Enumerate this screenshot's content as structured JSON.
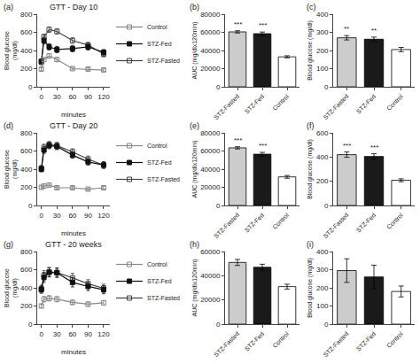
{
  "chart_data": [
    {
      "type": "line",
      "title": "GTT - Day 10",
      "annotations": [
        "(a)"
      ],
      "x": [
        0,
        5,
        15,
        30,
        60,
        90,
        120
      ],
      "xlabel": "minutes",
      "ylabel": "Blood glucose\n(mg/dl)",
      "xlim": [
        -8,
        132
      ],
      "xticks": [
        0,
        30,
        60,
        90,
        120
      ],
      "ylim": [
        0,
        800
      ],
      "yticks": [
        0,
        200,
        400,
        600,
        800
      ],
      "grid": false,
      "legend": "right",
      "series": [
        {
          "name": "STZ-Fasted",
          "color": "#444444",
          "marker": "square-open",
          "values": [
            270,
            550,
            630,
            610,
            510,
            460,
            360
          ],
          "errors": [
            25,
            30,
            30,
            30,
            30,
            30,
            30
          ]
        },
        {
          "name": "STZ-Fed",
          "color": "#111111",
          "marker": "square",
          "values": [
            280,
            510,
            440,
            410,
            420,
            440,
            380
          ],
          "errors": [
            25,
            35,
            35,
            35,
            35,
            35,
            30
          ]
        },
        {
          "name": "Control",
          "color": "#888888",
          "marker": "square-open",
          "values": [
            195,
            300,
            340,
            300,
            200,
            195,
            185
          ],
          "errors": [
            15,
            20,
            25,
            20,
            15,
            15,
            15
          ]
        }
      ]
    },
    {
      "type": "bar",
      "annotations": [
        "(b)"
      ],
      "categories": [
        "STZ-Fasted",
        "STZ-Fed",
        "Control"
      ],
      "values": [
        60500,
        58500,
        33000
      ],
      "errors": [
        1200,
        1800,
        1200
      ],
      "significance": [
        "***",
        "***",
        null
      ],
      "colors": [
        "#cccccc",
        "#1a1a1a",
        "#ffffff"
      ],
      "ylabel": "AUC (mg/dlx120min)",
      "ylim": [
        0,
        80000
      ],
      "yticks": [
        0,
        20000,
        40000,
        60000,
        80000
      ],
      "grid": false
    },
    {
      "type": "bar",
      "annotations": [
        "(c)"
      ],
      "categories": [
        "STZ-Fasted",
        "STZ-Fed",
        "Control"
      ],
      "values": [
        270,
        262,
        205
      ],
      "errors": [
        12,
        12,
        12
      ],
      "significance": [
        "**",
        "**",
        null
      ],
      "colors": [
        "#cccccc",
        "#1a1a1a",
        "#ffffff"
      ],
      "ylabel": "Blood glucose (mg/dl)",
      "ylim": [
        0,
        400
      ],
      "yticks": [
        0,
        100,
        200,
        300,
        400
      ],
      "grid": false
    },
    {
      "type": "line",
      "title": "GTT - Day 20",
      "annotations": [
        "(d)"
      ],
      "x": [
        0,
        5,
        15,
        30,
        60,
        90,
        120
      ],
      "xlabel": "minutes",
      "ylabel": "Blood glucose\n(mg/dl)",
      "xlim": [
        -8,
        132
      ],
      "xticks": [
        0,
        30,
        60,
        90,
        120
      ],
      "ylim": [
        0,
        800
      ],
      "yticks": [
        0,
        200,
        400,
        600,
        800
      ],
      "grid": false,
      "legend": "right",
      "series": [
        {
          "name": "STZ-Fasted",
          "color": "#444444",
          "marker": "square-open",
          "values": [
            410,
            640,
            670,
            660,
            590,
            510,
            445
          ],
          "errors": [
            30,
            35,
            35,
            35,
            35,
            35,
            35
          ]
        },
        {
          "name": "STZ-Fed",
          "color": "#111111",
          "marker": "square",
          "values": [
            400,
            610,
            660,
            650,
            555,
            480,
            445
          ],
          "errors": [
            30,
            35,
            35,
            35,
            35,
            35,
            35
          ]
        },
        {
          "name": "Control",
          "color": "#888888",
          "marker": "square-open",
          "values": [
            200,
            215,
            225,
            195,
            195,
            180,
            195
          ],
          "errors": [
            15,
            20,
            20,
            15,
            15,
            15,
            15
          ]
        }
      ]
    },
    {
      "type": "bar",
      "annotations": [
        "(e)"
      ],
      "categories": [
        "STZ-Fasted",
        "STZ-Fed",
        "Control"
      ],
      "values": [
        63500,
        56500,
        31500
      ],
      "errors": [
        1200,
        2000,
        1500
      ],
      "significance": [
        "***",
        "***",
        null
      ],
      "colors": [
        "#cccccc",
        "#1a1a1a",
        "#ffffff"
      ],
      "ylabel": "AUC (mg/dlx120min)",
      "ylim": [
        0,
        80000
      ],
      "yticks": [
        0,
        20000,
        40000,
        60000,
        80000
      ],
      "grid": false
    },
    {
      "type": "bar",
      "annotations": [
        "(f)"
      ],
      "categories": [
        "STZ-Fasted",
        "STZ-Fed",
        "Control"
      ],
      "values": [
        420,
        405,
        208
      ],
      "errors": [
        22,
        22,
        12
      ],
      "significance": [
        "***",
        "***",
        null
      ],
      "colors": [
        "#cccccc",
        "#1a1a1a",
        "#ffffff"
      ],
      "ylabel": "Blood glucose (mg/dl)",
      "ylim": [
        0,
        600
      ],
      "yticks": [
        0,
        200,
        400,
        600
      ],
      "grid": false
    },
    {
      "type": "line",
      "title": "GTT - 20 weeks",
      "annotations": [
        "(g)"
      ],
      "x": [
        0,
        5,
        15,
        30,
        60,
        90,
        120
      ],
      "xlabel": "minutes",
      "ylabel": "Blood glucose\n(mg/dl)",
      "xlim": [
        -8,
        132
      ],
      "xticks": [
        0,
        30,
        60,
        90,
        120
      ],
      "ylim": [
        0,
        800
      ],
      "yticks": [
        0,
        200,
        400,
        600,
        800
      ],
      "grid": false,
      "legend": "right",
      "series": [
        {
          "name": "STZ-Fasted",
          "color": "#444444",
          "marker": "square-open",
          "values": [
            390,
            535,
            575,
            570,
            510,
            445,
            395
          ],
          "errors": [
            40,
            55,
            50,
            50,
            50,
            45,
            45
          ]
        },
        {
          "name": "STZ-Fed",
          "color": "#111111",
          "marker": "square",
          "values": [
            380,
            515,
            570,
            565,
            460,
            415,
            380
          ],
          "errors": [
            40,
            55,
            50,
            50,
            50,
            45,
            45
          ]
        },
        {
          "name": "Control",
          "color": "#888888",
          "marker": "square-open",
          "values": [
            200,
            275,
            285,
            275,
            240,
            220,
            235
          ],
          "errors": [
            20,
            30,
            30,
            30,
            25,
            25,
            25
          ]
        }
      ]
    },
    {
      "type": "bar",
      "annotations": [
        "(h)"
      ],
      "categories": [
        "STZ-Fasted",
        "STZ-Fed",
        "Control"
      ],
      "values": [
        51000,
        47000,
        31000
      ],
      "errors": [
        2500,
        2500,
        2000
      ],
      "colors": [
        "#cccccc",
        "#1a1a1a",
        "#ffffff"
      ],
      "ylabel": "AUC (mg/dlx120min)",
      "ylim": [
        0,
        60000
      ],
      "yticks": [
        0,
        20000,
        40000,
        60000
      ],
      "grid": false
    },
    {
      "type": "bar",
      "annotations": [
        "(i)"
      ],
      "categories": [
        "STZ-Fasted",
        "STZ-Fed",
        "Control"
      ],
      "values": [
        295,
        260,
        180
      ],
      "errors": [
        65,
        65,
        30
      ],
      "colors": [
        "#cccccc",
        "#1a1a1a",
        "#ffffff"
      ],
      "ylabel": "Blood glucose (mg/dl)",
      "ylim": [
        0,
        400
      ],
      "yticks": [
        0,
        100,
        200,
        300,
        400
      ],
      "grid": false
    }
  ]
}
